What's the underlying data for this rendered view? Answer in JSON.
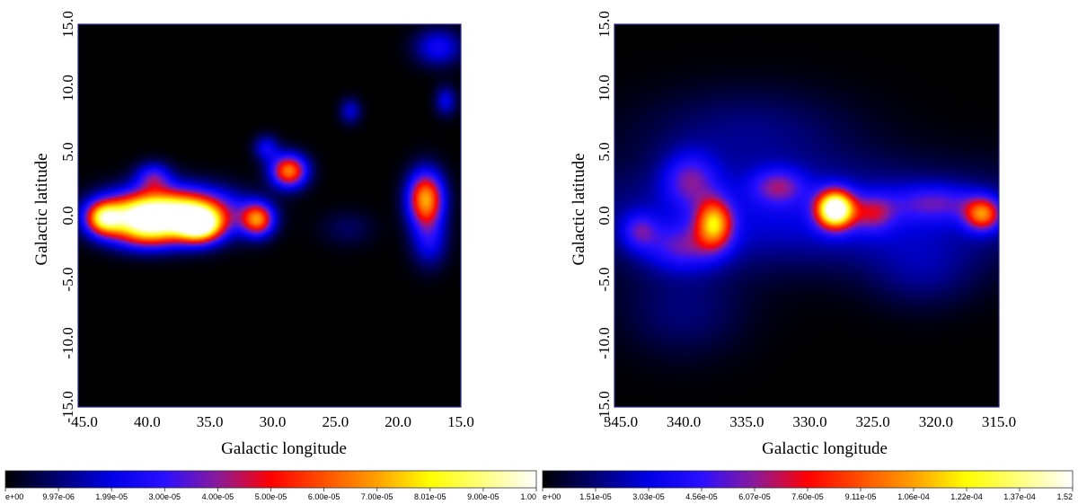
{
  "chart_data": [
    {
      "type": "heatmap",
      "xlabel": "Galactic longitude",
      "ylabel": "Galactic latitude",
      "xlim": [
        45.5,
        15.0
      ],
      "ylim": [
        -15.0,
        15.0
      ],
      "x_ticks": [
        "45.0",
        "40.0",
        "35.0",
        "30.0",
        "25.0",
        "20.0",
        "15.0"
      ],
      "x_tick_values": [
        45,
        40,
        35,
        30,
        25,
        20,
        15
      ],
      "y_ticks": [
        "-15.0",
        "-10.0",
        "-5.0",
        "0.0",
        "5.0",
        "10.0",
        "15.0"
      ],
      "y_tick_values": [
        -15,
        -10,
        -5,
        0,
        5,
        10,
        15
      ],
      "colormap": "heat",
      "colorbar_ticks": [
        "e+00",
        "9.97e-06",
        "1.99e-05",
        "3.00e-05",
        "4.00e-05",
        "5.00e-05",
        "6.00e-05",
        "7.00e-05",
        "8.01e-05",
        "9.00e-05",
        "1.00"
      ],
      "sources": [
        {
          "l": 38.0,
          "b": 0.2,
          "sl": 3.2,
          "sb": 1.3,
          "a": 1.0
        },
        {
          "l": 35.8,
          "b": -0.8,
          "sl": 1.2,
          "sb": 0.9,
          "a": 0.75
        },
        {
          "l": 43.5,
          "b": -0.2,
          "sl": 1.0,
          "sb": 0.9,
          "a": 0.62
        },
        {
          "l": 41.0,
          "b": 0.0,
          "sl": 1.8,
          "sb": 1.1,
          "a": 0.35
        },
        {
          "l": 40.0,
          "b": -1.5,
          "sl": 2.0,
          "sb": 0.9,
          "a": 0.35
        },
        {
          "l": 39.5,
          "b": 3.0,
          "sl": 1.0,
          "sb": 0.8,
          "a": 0.3
        },
        {
          "l": 31.2,
          "b": -0.3,
          "sl": 0.9,
          "sb": 0.9,
          "a": 0.6
        },
        {
          "l": 28.7,
          "b": 3.5,
          "sl": 1.0,
          "sb": 0.9,
          "a": 0.65
        },
        {
          "l": 30.5,
          "b": 5.3,
          "sl": 0.7,
          "sb": 0.7,
          "a": 0.22
        },
        {
          "l": 17.8,
          "b": 1.3,
          "sl": 1.0,
          "sb": 1.5,
          "a": 0.7
        },
        {
          "l": 17.5,
          "b": -2.0,
          "sl": 1.0,
          "sb": 1.4,
          "a": 0.22
        },
        {
          "l": 16.8,
          "b": 13.2,
          "sl": 1.3,
          "sb": 1.0,
          "a": 0.24
        },
        {
          "l": 16.2,
          "b": 9.0,
          "sl": 0.6,
          "sb": 0.8,
          "a": 0.2
        },
        {
          "l": 23.8,
          "b": 8.2,
          "sl": 0.6,
          "sb": 0.7,
          "a": 0.18
        },
        {
          "l": 24.0,
          "b": -1.0,
          "sl": 1.5,
          "sb": 1.0,
          "a": 0.08
        }
      ]
    },
    {
      "type": "heatmap",
      "xlabel": "Galactic longitude",
      "ylabel": "Galactic latitude",
      "xlim": [
        345.5,
        315.0
      ],
      "ylim": [
        -15.0,
        15.0
      ],
      "x_ticks": [
        "345.0",
        "340.0",
        "335.0",
        "330.0",
        "325.0",
        "320.0",
        "315.0"
      ],
      "x_tick_values": [
        345,
        340,
        335,
        330,
        325,
        320,
        315
      ],
      "y_ticks": [
        "-15.0",
        "-10.0",
        "-5.0",
        "0.0",
        "5.0",
        "10.0",
        "15.0"
      ],
      "y_tick_values": [
        -15,
        -10,
        -5,
        0,
        5,
        10,
        15
      ],
      "colormap": "heat",
      "colorbar_ticks": [
        "e+00",
        "1.51e-05",
        "3.03e-05",
        "4.56e-05",
        "6.07e-05",
        "7.60e-05",
        "9.11e-05",
        "1.06e-04",
        "1.22e-04",
        "1.37e-04",
        "1.52"
      ],
      "sources": [
        {
          "l": 328.0,
          "b": 0.5,
          "sl": 1.0,
          "sb": 1.0,
          "a": 1.0
        },
        {
          "l": 337.6,
          "b": -0.6,
          "sl": 1.0,
          "sb": 1.3,
          "a": 0.58
        },
        {
          "l": 316.3,
          "b": 0.1,
          "sl": 1.0,
          "sb": 0.9,
          "a": 0.52
        },
        {
          "l": 330.0,
          "b": 0.0,
          "sl": 14.0,
          "sb": 2.8,
          "a": 0.2
        },
        {
          "l": 339.5,
          "b": 2.8,
          "sl": 1.5,
          "sb": 1.5,
          "a": 0.27
        },
        {
          "l": 332.5,
          "b": 2.3,
          "sl": 1.5,
          "sb": 1.0,
          "a": 0.26
        },
        {
          "l": 340.0,
          "b": -2.5,
          "sl": 2.2,
          "sb": 1.3,
          "a": 0.25
        },
        {
          "l": 343.5,
          "b": -1.2,
          "sl": 1.0,
          "sb": 1.0,
          "a": 0.22
        },
        {
          "l": 320.0,
          "b": 1.0,
          "sl": 2.5,
          "sb": 1.0,
          "a": 0.22
        },
        {
          "l": 325.0,
          "b": 0.2,
          "sl": 1.2,
          "sb": 1.0,
          "a": 0.26
        },
        {
          "l": 335.0,
          "b": 6.5,
          "sl": 6.0,
          "sb": 2.5,
          "a": 0.11
        },
        {
          "l": 340.0,
          "b": -7.5,
          "sl": 3.5,
          "sb": 2.5,
          "a": 0.1
        },
        {
          "l": 321.0,
          "b": -4.5,
          "sl": 3.0,
          "sb": 2.0,
          "a": 0.1
        }
      ]
    }
  ]
}
